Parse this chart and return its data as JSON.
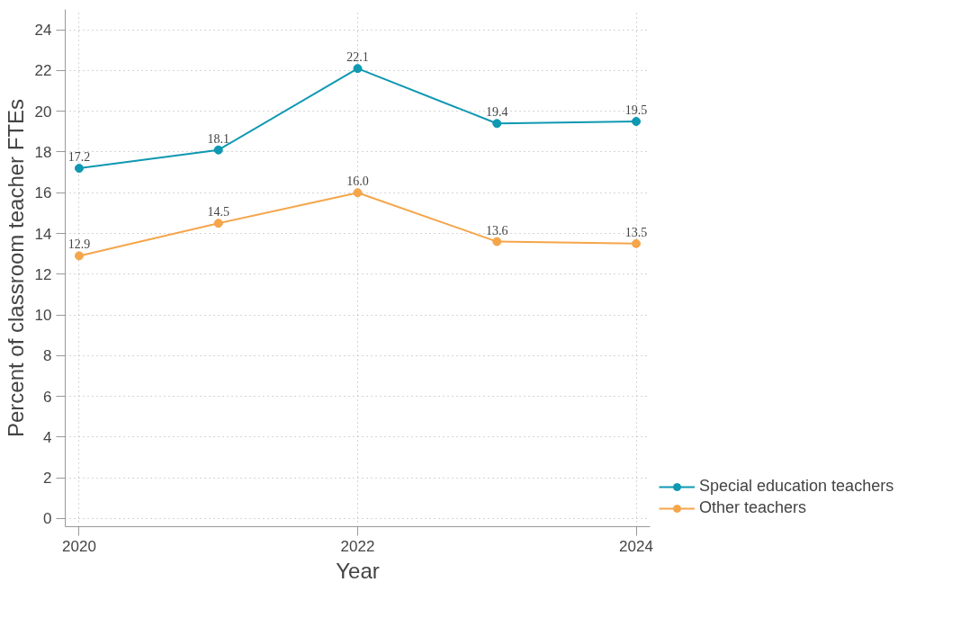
{
  "chart_data": {
    "type": "line",
    "xlabel": "Year",
    "ylabel": "Percent of classroom teacher FTEs",
    "x": [
      2020,
      2021,
      2022,
      2023,
      2024
    ],
    "series": [
      {
        "name": "Special education teachers",
        "color": "#0f98b2",
        "values": [
          17.2,
          18.1,
          22.1,
          19.4,
          19.5
        ],
        "value_labels": [
          "17.2",
          "18.1",
          "22.1",
          "19.4",
          "19.5"
        ]
      },
      {
        "name": "Other teachers",
        "color": "#f5a54a",
        "values": [
          12.9,
          14.5,
          16.0,
          13.6,
          13.5
        ],
        "value_labels": [
          "12.9",
          "14.5",
          "16.0",
          "13.6",
          "13.5"
        ]
      }
    ],
    "xlim": [
      2019.9,
      2024.1
    ],
    "xticks": [
      2020,
      2022,
      2024
    ],
    "ylim": [
      -0.4,
      25
    ],
    "yticks": [
      0,
      2,
      4,
      6,
      8,
      10,
      12,
      14,
      16,
      18,
      20,
      22,
      24
    ],
    "grid": true,
    "legend": "bottom right",
    "marker": "circle"
  }
}
